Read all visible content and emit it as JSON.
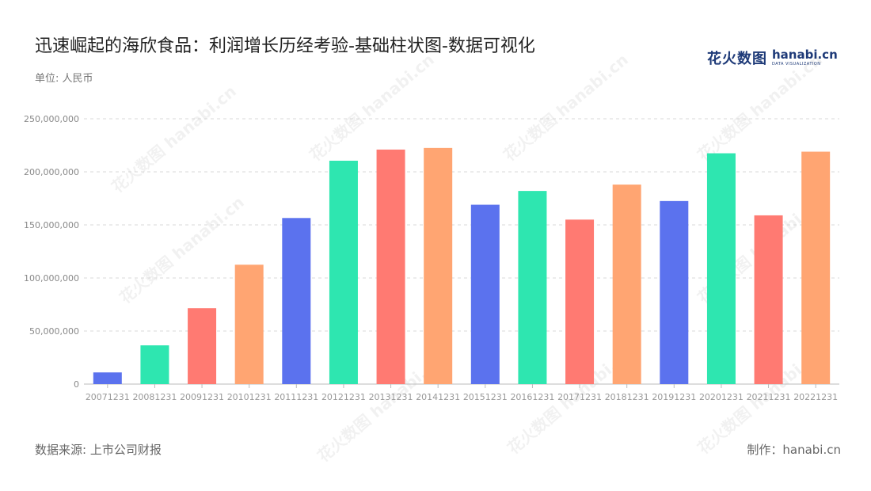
{
  "title": "迅速崛起的海欣食品：利润增长历经考验-基础柱状图-数据可视化",
  "unit": "单位: 人民币",
  "logo": {
    "cn": "花火数图",
    "en": "hanabi.cn",
    "sub": "DATA VISUALIZATION"
  },
  "watermark": "花火数图 hanabi.cn",
  "source": "数据来源: 上市公司财报",
  "credit": "制作：hanabi.cn",
  "chart_data": {
    "type": "bar",
    "categories": [
      "20071231",
      "20081231",
      "20091231",
      "20101231",
      "20111231",
      "20121231",
      "20131231",
      "20141231",
      "20151231",
      "20161231",
      "20171231",
      "20181231",
      "20191231",
      "20201231",
      "20211231",
      "20221231"
    ],
    "values": [
      11000000,
      36500000,
      71500000,
      112500000,
      156500000,
      210500000,
      221000000,
      222500000,
      169000000,
      182000000,
      155000000,
      188000000,
      172500000,
      217500000,
      159000000,
      219000000
    ],
    "colors": [
      "#5b72ee",
      "#2ee6b0",
      "#ff7a72",
      "#ffa572"
    ],
    "ylim": [
      0,
      250000000
    ],
    "yticks": [
      0,
      50000000,
      100000000,
      150000000,
      200000000,
      250000000
    ],
    "grid": true
  }
}
